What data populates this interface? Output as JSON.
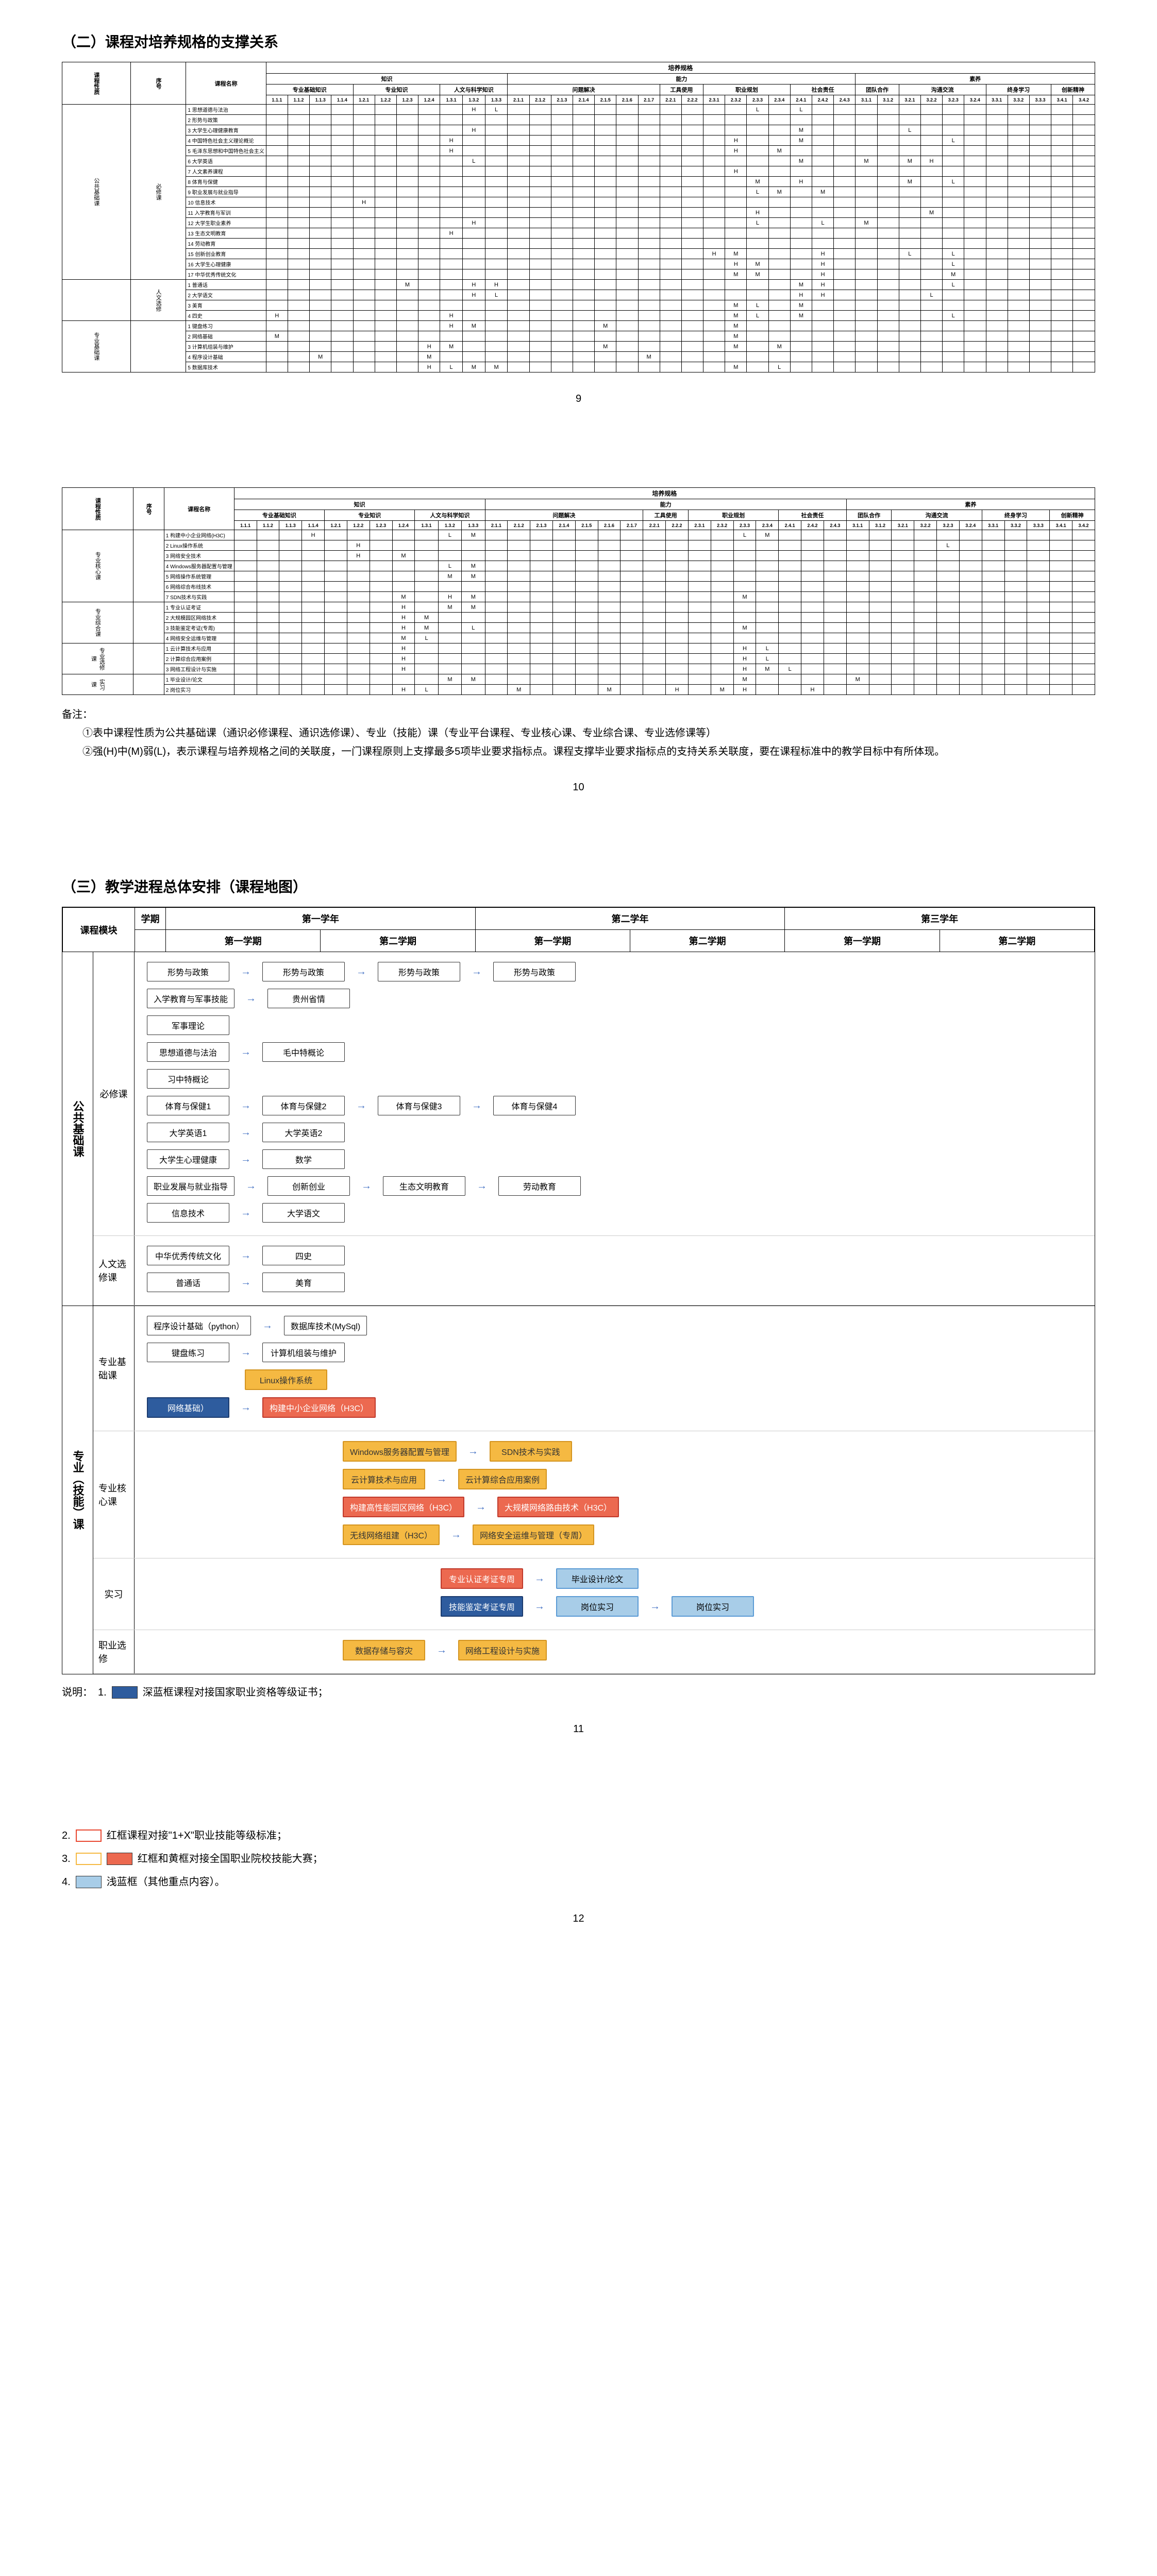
{
  "section2_title": "（二）课程对培养规格的支撑关系",
  "section3_title": "（三）教学进程总体安排（课程地图）",
  "page_numbers": [
    "9",
    "10",
    "11",
    "12"
  ],
  "matrix": {
    "top_header": "培养规格",
    "groups": [
      {
        "label": "知识",
        "sub": [
          {
            "label": "专业基础知识",
            "cols": [
              "1.1.1",
              "1.1.2",
              "1.1.3",
              "1.1.4"
            ]
          },
          {
            "label": "专业知识",
            "cols": [
              "1.2.1",
              "1.2.2",
              "1.2.3",
              "1.2.4"
            ]
          },
          {
            "label": "人文与科学知识",
            "cols": [
              "1.3.1",
              "1.3.2",
              "1.3.3"
            ]
          }
        ]
      },
      {
        "label": "能力",
        "sub": [
          {
            "label": "问题解决",
            "cols": [
              "2.1.1",
              "2.1.2",
              "2.1.3",
              "2.1.4",
              "2.1.5",
              "2.1.6",
              "2.1.7"
            ]
          },
          {
            "label": "工具使用",
            "cols": [
              "2.2.1",
              "2.2.2"
            ]
          },
          {
            "label": "职业规划",
            "cols": [
              "2.3.1",
              "2.3.2",
              "2.3.3",
              "2.3.4"
            ]
          },
          {
            "label": "社会责任",
            "cols": [
              "2.4.1",
              "2.4.2",
              "2.4.3"
            ]
          }
        ]
      },
      {
        "label": "素养",
        "sub": [
          {
            "label": "团队合作",
            "cols": [
              "3.1.1",
              "3.1.2"
            ]
          },
          {
            "label": "沟通交流",
            "cols": [
              "3.2.1",
              "3.2.2",
              "3.2.3",
              "3.2.4"
            ]
          },
          {
            "label": "终身学习",
            "cols": [
              "3.3.1",
              "3.3.2",
              "3.3.3"
            ]
          },
          {
            "label": "创新精神",
            "cols": [
              "3.4.1",
              "3.4.2"
            ]
          }
        ]
      }
    ],
    "side_labels": [
      "课程性质",
      "序号",
      "课程名称"
    ],
    "row_groups_1": [
      {
        "cat": "公共基础课",
        "sub": "必修课",
        "rows": [
          {
            "n": "1",
            "name": "思想道德与法治",
            "marks": {
              "9": "H",
              "10": "L",
              "22": "L",
              "24": "L"
            }
          },
          {
            "n": "2",
            "name": "形势与政策",
            "marks": {}
          },
          {
            "n": "3",
            "name": "大学生心理健康教育",
            "marks": {
              "9": "H",
              "24": "M",
              "29": "L"
            }
          },
          {
            "n": "4",
            "name": "中国特色社会主义理论概论",
            "marks": {
              "8": "H",
              "21": "H",
              "24": "M",
              "31": "L"
            }
          },
          {
            "n": "5",
            "name": "毛泽东思想和中国特色社会主义",
            "marks": {
              "8": "H",
              "21": "H",
              "23": "M"
            }
          },
          {
            "n": "6",
            "name": "大学英语",
            "marks": {
              "9": "L",
              "24": "M",
              "27": "M",
              "29": "M",
              "30": "H"
            }
          },
          {
            "n": "7",
            "name": "人文素养课程",
            "marks": {
              "21": "H"
            }
          },
          {
            "n": "8",
            "name": "体育与保健",
            "marks": {
              "22": "M",
              "24": "H",
              "29": "M",
              "31": "L"
            }
          },
          {
            "n": "9",
            "name": "职业发展与就业指导",
            "marks": {
              "22": "L",
              "23": "M",
              "25": "M"
            }
          },
          {
            "n": "10",
            "name": "信息技术",
            "marks": {
              "4": "H"
            }
          },
          {
            "n": "11",
            "name": "入学教育与军训",
            "marks": {
              "22": "H",
              "30": "M"
            }
          },
          {
            "n": "12",
            "name": "大学生职业素养",
            "marks": {
              "9": "H",
              "22": "L",
              "25": "L",
              "27": "M"
            }
          },
          {
            "n": "13",
            "name": "生态文明教育",
            "marks": {
              "8": "H"
            }
          },
          {
            "n": "14",
            "name": "劳动教育",
            "marks": {}
          },
          {
            "n": "15",
            "name": "创新创业教育",
            "marks": {
              "20": "H",
              "21": "M",
              "25": "H",
              "29": "L",
              "31": "L"
            }
          },
          {
            "n": "16",
            "name": "大学生心理健康",
            "marks": {
              "21": "H",
              "22": "M",
              "25": "H",
              "31": "L"
            }
          },
          {
            "n": "17",
            "name": "中华优秀传统文化",
            "marks": {
              "21": "M",
              "22": "M",
              "25": "H",
              "31": "M"
            }
          }
        ]
      },
      {
        "cat": "",
        "sub": "人文选修",
        "rows": [
          {
            "n": "1",
            "name": "普通话",
            "marks": {
              "6": "M",
              "9": "H",
              "10": "H",
              "24": "M",
              "25": "H",
              "31": "L"
            }
          },
          {
            "n": "2",
            "name": "大学语文",
            "marks": {
              "9": "H",
              "10": "L",
              "24": "H",
              "25": "H",
              "30": "L"
            }
          },
          {
            "n": "3",
            "name": "美育",
            "marks": {
              "21": "M",
              "22": "L",
              "24": "M"
            }
          },
          {
            "n": "4",
            "name": "四史",
            "marks": {
              "0": "H",
              "8": "H",
              "21": "M",
              "22": "L",
              "24": "M",
              "31": "L"
            }
          }
        ]
      },
      {
        "cat": "专业基础课",
        "sub": "",
        "rows": [
          {
            "n": "1",
            "name": "键盘练习",
            "marks": {
              "8": "H",
              "9": "M",
              "15": "M",
              "21": "M"
            }
          },
          {
            "n": "2",
            "name": "网络基础",
            "marks": {
              "0": "M",
              "21": "M"
            }
          },
          {
            "n": "3",
            "name": "计算机组装与维护",
            "marks": {
              "7": "H",
              "8": "M",
              "15": "M",
              "21": "M",
              "23": "M"
            }
          },
          {
            "n": "4",
            "name": "程序设计基础",
            "marks": {
              "2": "M",
              "7": "M",
              "17": "M"
            }
          },
          {
            "n": "5",
            "name": "数据库技术",
            "marks": {
              "7": "H",
              "8": "L",
              "9": "M",
              "10": "M",
              "21": "M",
              "23": "L"
            }
          }
        ]
      }
    ],
    "row_groups_2": [
      {
        "cat": "专业核心课",
        "sub": "",
        "rows": [
          {
            "n": "1",
            "name": "构建中小企业网络(H3C)",
            "marks": {
              "3": "H",
              "9": "L",
              "10": "M",
              "22": "L",
              "23": "M"
            }
          },
          {
            "n": "2",
            "name": "Linux操作系统",
            "marks": {
              "5": "H",
              "31": "L"
            }
          },
          {
            "n": "3",
            "name": "网络安全技术",
            "marks": {
              "5": "H",
              "7": "M"
            }
          },
          {
            "n": "4",
            "name": "Windows服务器配置与管理",
            "marks": {
              "9": "L",
              "10": "M"
            }
          },
          {
            "n": "5",
            "name": "网络操作系统管理",
            "marks": {
              "9": "M",
              "10": "M"
            }
          },
          {
            "n": "6",
            "name": "网络综合布线技术",
            "marks": {}
          },
          {
            "n": "7",
            "name": "SDN技术与实践",
            "marks": {
              "7": "M",
              "9": "H",
              "10": "M",
              "22": "M"
            }
          }
        ]
      },
      {
        "cat": "专业综合课",
        "sub": "",
        "rows": [
          {
            "n": "1",
            "name": "专业认证考证",
            "marks": {
              "7": "H",
              "9": "M",
              "10": "M"
            }
          },
          {
            "n": "2",
            "name": "大规模园区网络技术",
            "marks": {
              "7": "H",
              "8": "M"
            }
          },
          {
            "n": "3",
            "name": "技能鉴定考证(专周)",
            "marks": {
              "7": "H",
              "8": "M",
              "10": "L",
              "22": "M"
            }
          },
          {
            "n": "4",
            "name": "网络安全运维与管理",
            "marks": {
              "7": "M",
              "8": "L"
            }
          }
        ]
      },
      {
        "cat": "专业选修课",
        "sub": "",
        "rows": [
          {
            "n": "1",
            "name": "云计算技术与应用",
            "marks": {
              "7": "H",
              "22": "H",
              "23": "L"
            }
          },
          {
            "n": "2",
            "name": "计算综合应用案例",
            "marks": {
              "7": "H",
              "22": "H",
              "23": "L"
            }
          },
          {
            "n": "3",
            "name": "网络工程设计与实施",
            "marks": {
              "7": "H",
              "22": "H",
              "23": "M",
              "24": "L"
            }
          }
        ]
      },
      {
        "cat": "实习课",
        "sub": "",
        "rows": [
          {
            "n": "1",
            "name": "毕业设计/论文",
            "marks": {
              "9": "M",
              "10": "M",
              "22": "M",
              "27": "M"
            }
          },
          {
            "n": "2",
            "name": "岗位实习",
            "marks": {
              "7": "H",
              "8": "L",
              "12": "M",
              "16": "M",
              "19": "H",
              "21": "M",
              "22": "H",
              "25": "H"
            }
          }
        ]
      }
    ]
  },
  "notes": {
    "title": "备注：",
    "items": [
      "①表中课程性质为公共基础课（通识必修课程、通识选修课）、专业（技能）课（专业平台课程、专业核心课、专业综合课、专业选修课等）",
      "②强(H)中(M)弱(L)，表示课程与培养规格之间的关联度，一门课程原则上支撑最多5项毕业要求指标点。课程支撑毕业要求指标点的支持关系关联度，要在课程标准中的教学目标中有所体现。"
    ]
  },
  "map": {
    "header": {
      "module_label": "课程模块",
      "semester_label": "学期",
      "years": [
        "第一学年",
        "第二学年",
        "第三学年"
      ],
      "semesters": [
        "第一学期",
        "第二学期",
        "第一学期",
        "第二学期",
        "第一学期",
        "第二学期"
      ]
    },
    "blocks": [
      {
        "cat": "公共基础课",
        "subs": [
          {
            "label": "必修课",
            "rows": [
              [
                {
                  "t": "形势与政策",
                  "s": ""
                },
                {
                  "t": "形势与政策",
                  "s": ""
                },
                {
                  "t": "形势与政策",
                  "s": ""
                },
                {
                  "t": "形势与政策",
                  "s": ""
                }
              ],
              [
                {
                  "t": "入学教育与军事技能",
                  "s": ""
                },
                {
                  "t": "贵州省情",
                  "s": ""
                }
              ],
              [
                {
                  "t": "军事理论",
                  "s": ""
                }
              ],
              [
                {
                  "t": "思想道德与法治",
                  "s": ""
                },
                {
                  "t": "毛中特概论",
                  "s": ""
                }
              ],
              [
                {
                  "t": "习中特概论",
                  "s": ""
                }
              ],
              [
                {
                  "t": "体育与保健1",
                  "s": ""
                },
                {
                  "t": "体育与保健2",
                  "s": ""
                },
                {
                  "t": "体育与保健3",
                  "s": ""
                },
                {
                  "t": "体育与保健4",
                  "s": ""
                }
              ],
              [
                {
                  "t": "大学英语1",
                  "s": ""
                },
                {
                  "t": "大学英语2",
                  "s": ""
                }
              ],
              [
                {
                  "t": "大学生心理健康",
                  "s": ""
                },
                {
                  "t": "数学",
                  "s": ""
                }
              ],
              [
                {
                  "t": "职业发展与就业指导",
                  "s": ""
                },
                {
                  "t": "创新创业",
                  "s": ""
                },
                {
                  "t": "生态文明教育",
                  "s": ""
                },
                {
                  "t": "劳动教育",
                  "s": ""
                }
              ],
              [
                {
                  "t": "信息技术",
                  "s": ""
                },
                {
                  "t": "大学语文",
                  "s": ""
                }
              ]
            ]
          },
          {
            "label": "人文选修课",
            "rows": [
              [
                {
                  "t": "中华优秀传统文化",
                  "s": ""
                },
                {
                  "t": "四史",
                  "s": ""
                }
              ],
              [
                {
                  "t": "普通话",
                  "s": ""
                },
                {
                  "t": "美育",
                  "s": ""
                }
              ]
            ]
          }
        ]
      },
      {
        "cat": "专业（技能）课",
        "subs": [
          {
            "label": "专业基础课",
            "rows": [
              [
                {
                  "t": "程序设计基础（python）",
                  "s": ""
                },
                {
                  "t": "数据库技术(MySql)",
                  "s": ""
                }
              ],
              [
                {
                  "t": "键盘练习",
                  "s": ""
                },
                {
                  "t": "计算机组装与维护",
                  "s": ""
                }
              ],
              [
                null,
                {
                  "t": "Linux操作系统",
                  "s": "yellow"
                }
              ],
              [
                {
                  "t": "网络基础）",
                  "s": "darkblue"
                },
                {
                  "t": "构建中小企业网络（H3C）",
                  "s": "red-fill"
                }
              ]
            ]
          },
          {
            "label": "专业核心课",
            "rows": [
              [
                null,
                null,
                {
                  "t": "Windows服务器配置与管理",
                  "s": "yellow"
                },
                {
                  "t": "SDN技术与实践",
                  "s": "yellow"
                }
              ],
              [
                null,
                null,
                {
                  "t": "云计算技术与应用",
                  "s": "yellow"
                },
                {
                  "t": "云计算综合应用案例",
                  "s": "yellow"
                }
              ],
              [
                null,
                null,
                {
                  "t": "构建高性能园区网络（H3C）",
                  "s": "red-fill"
                },
                {
                  "t": "大规模网络路由技术（H3C）",
                  "s": "red-fill"
                }
              ],
              [
                null,
                null,
                {
                  "t": "无线网络组建（H3C）",
                  "s": "yellow"
                },
                {
                  "t": "网络安全运维与管理（专周）",
                  "s": "yellow"
                }
              ]
            ]
          },
          {
            "label": "实习",
            "rows": [
              [
                null,
                null,
                null,
                {
                  "t": "专业认证考证专周",
                  "s": "red-fill"
                },
                {
                  "t": "毕业设计/论文",
                  "s": "lightblue"
                }
              ],
              [
                null,
                null,
                null,
                {
                  "t": "技能鉴定考证专周",
                  "s": "darkblue"
                },
                {
                  "t": "岗位实习",
                  "s": "lightblue"
                },
                {
                  "t": "岗位实习",
                  "s": "lightblue"
                }
              ]
            ]
          },
          {
            "label": "职业选修",
            "rows": [
              [
                null,
                null,
                {
                  "t": "数据存储与容灾",
                  "s": "yellow"
                },
                {
                  "t": "网络工程设计与实施",
                  "s": "yellow"
                }
              ]
            ]
          }
        ]
      }
    ]
  },
  "legend": {
    "intro": "说明：",
    "items": [
      {
        "n": "1.",
        "color": "#2e5c9e",
        "text": "深蓝框课程对接国家职业资格等级证书；"
      },
      {
        "n": "2.",
        "color": "#e8462f",
        "text": "红框课程对接\"1+X\"职业技能等级标准；",
        "bg": "#fff"
      },
      {
        "n": "3.",
        "color": "#f5b942",
        "color2": "#ec6950",
        "text": "红框和黄框对接全国职业院校技能大赛；"
      },
      {
        "n": "4.",
        "color": "#a8cde8",
        "text": "浅蓝框（其他重点内容）。"
      }
    ]
  },
  "colors": {
    "darkblue": "#2e5c9e",
    "red": "#e8462f",
    "red_fill": "#ec6950",
    "yellow": "#f5b942",
    "lightblue": "#a8cde8",
    "arrow": "#4472c4"
  }
}
